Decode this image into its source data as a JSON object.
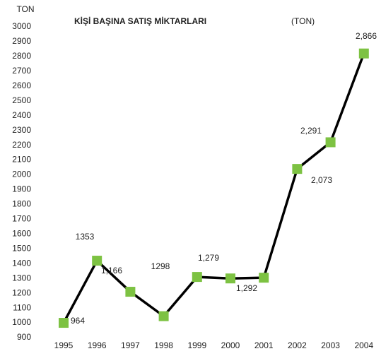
{
  "chart_data": {
    "type": "line",
    "title": "KİŞİ BAŞINA SATIŞ MİKTARLARI",
    "title_unit": "(TON)",
    "y_label": "TON",
    "categories": [
      "1995",
      "1996",
      "1997",
      "1998",
      "1999",
      "2000",
      "2001",
      "2002",
      "2003",
      "2004"
    ],
    "series": [
      {
        "name": "TON",
        "color": "#000000",
        "marker_color": "#7dc242",
        "values": [
          1000,
          1420,
          1210,
          1045,
          1310,
          1300,
          1305,
          2040,
          2220,
          2820
        ]
      }
    ],
    "annotations": [
      "964",
      "1353",
      "1,166",
      "1298",
      "1,279",
      "1,292",
      "2,073",
      "2,291",
      "2,866"
    ],
    "ylim": [
      900,
      3000
    ],
    "yticks": [
      900,
      1000,
      1100,
      1200,
      1300,
      1400,
      1500,
      1600,
      1700,
      1800,
      1900,
      2000,
      2100,
      2200,
      2300,
      2400,
      2500,
      2600,
      2700,
      2800,
      2900,
      3000
    ],
    "grid": false
  }
}
